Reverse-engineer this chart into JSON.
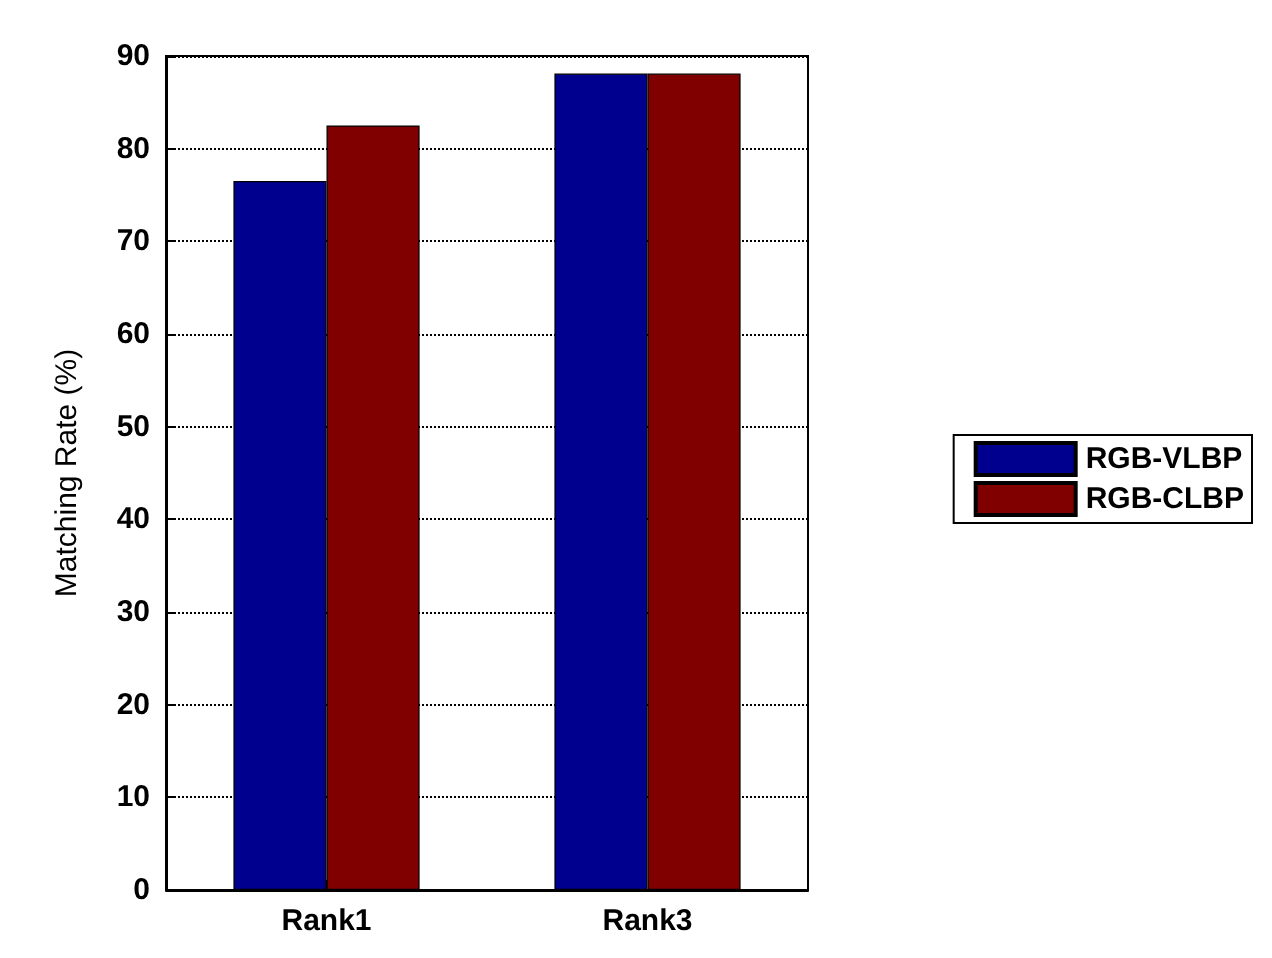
{
  "chart_data": {
    "type": "bar",
    "ylabel": "Matching Rate (%)",
    "categories": [
      "Rank1",
      "Rank3"
    ],
    "series": [
      {
        "name": "RGB-VLBP",
        "color": "#00008f",
        "values": [
          76.5,
          88.1
        ]
      },
      {
        "name": "RGB-CLBP",
        "color": "#800000",
        "values": [
          82.5,
          88.1
        ]
      }
    ],
    "ylim": [
      0,
      90
    ],
    "yticks": [
      0,
      10,
      20,
      30,
      40,
      50,
      60,
      70,
      80,
      90
    ],
    "grid": "y",
    "legend": "right"
  }
}
